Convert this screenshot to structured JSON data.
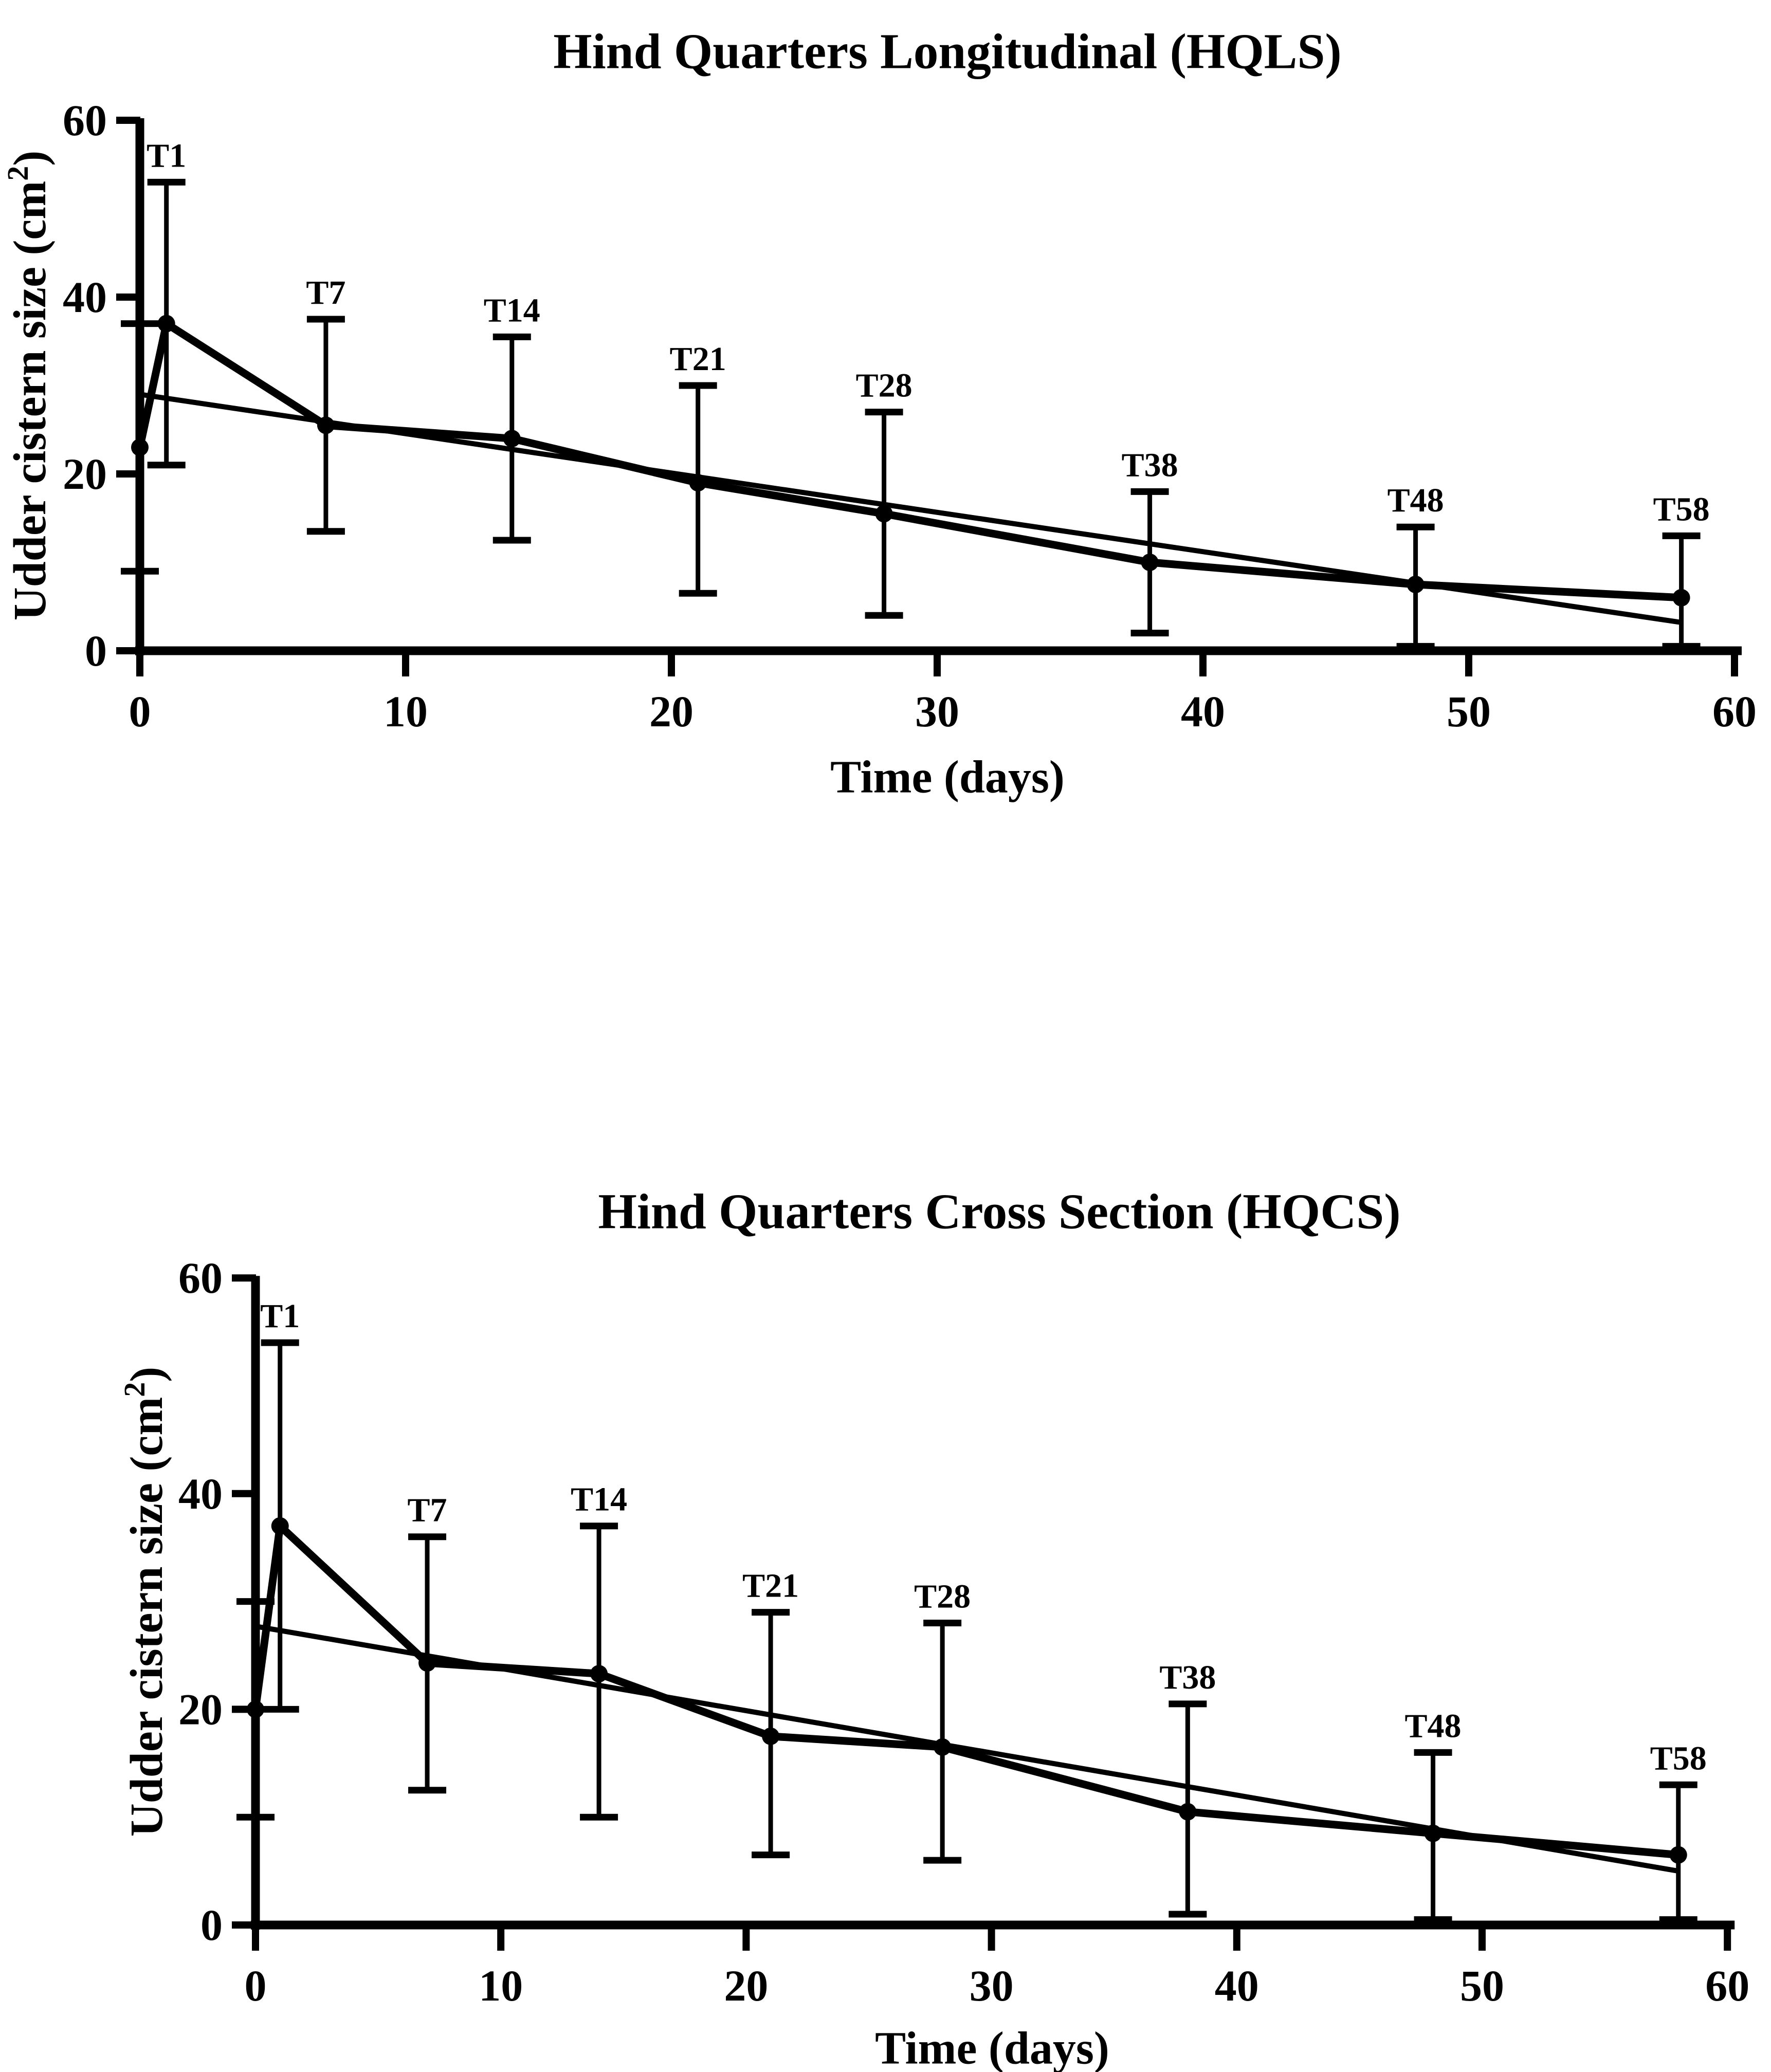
{
  "page": {
    "background": "#ffffff",
    "ink": "#000000"
  },
  "chart_data": [
    {
      "type": "line",
      "title": "Hind Quarters Longitudinal (HQLS)",
      "xlabel": "Time (days)",
      "ylabel_base": "Udder cistern size (cm",
      "ylabel_sup": "2",
      "ylabel_end": ")",
      "xlim": [
        0,
        60
      ],
      "ylim": [
        0,
        60
      ],
      "xticks": [
        0,
        10,
        20,
        30,
        40,
        50,
        60
      ],
      "yticks": [
        0,
        20,
        40,
        60
      ],
      "grid": false,
      "legend": null,
      "series": [
        {
          "name": "mean udder cistern size with SD error bars",
          "style": "markers+line",
          "points": [
            {
              "label": "",
              "x": 0,
              "y": 23,
              "err_lo": 9,
              "err_hi": 37
            },
            {
              "label": "T1",
              "x": 1,
              "y": 37,
              "err_lo": 21,
              "err_hi": 53
            },
            {
              "label": "T7",
              "x": 7,
              "y": 25.5,
              "err_lo": 13.5,
              "err_hi": 37.5
            },
            {
              "label": "T14",
              "x": 14,
              "y": 24,
              "err_lo": 12.5,
              "err_hi": 35.5
            },
            {
              "label": "T21",
              "x": 21,
              "y": 19,
              "err_lo": 6.5,
              "err_hi": 30
            },
            {
              "label": "T28",
              "x": 28,
              "y": 15.5,
              "err_lo": 4,
              "err_hi": 27
            },
            {
              "label": "T38",
              "x": 38,
              "y": 10,
              "err_lo": 2,
              "err_hi": 18
            },
            {
              "label": "T48",
              "x": 48,
              "y": 7.5,
              "err_lo": 0.5,
              "err_hi": 14
            },
            {
              "label": "T58",
              "x": 58,
              "y": 6,
              "err_lo": 0.5,
              "err_hi": 13
            }
          ]
        },
        {
          "name": "linear trend line",
          "style": "line",
          "points": [
            {
              "x": 0,
              "y": 29
            },
            {
              "x": 58,
              "y": 3.2
            }
          ]
        }
      ]
    },
    {
      "type": "line",
      "title": "Hind Quarters Cross Section (HQCS)",
      "xlabel": "Time (days)",
      "ylabel_base": "Udder cistern size (cm",
      "ylabel_sup": "2",
      "ylabel_end": ")",
      "xlim": [
        0,
        60
      ],
      "ylim": [
        0,
        60
      ],
      "xticks": [
        0,
        10,
        20,
        30,
        40,
        50,
        60
      ],
      "yticks": [
        0,
        20,
        40,
        60
      ],
      "grid": false,
      "legend": null,
      "series": [
        {
          "name": "mean udder cistern size with SD error bars",
          "style": "markers+line",
          "points": [
            {
              "label": "",
              "x": 0,
              "y": 20,
              "err_lo": 10,
              "err_hi": 30
            },
            {
              "label": "T1",
              "x": 1,
              "y": 37,
              "err_lo": 20,
              "err_hi": 54
            },
            {
              "label": "T7",
              "x": 7,
              "y": 24.3,
              "err_lo": 12.5,
              "err_hi": 36
            },
            {
              "label": "T14",
              "x": 14,
              "y": 23.3,
              "err_lo": 10,
              "err_hi": 37
            },
            {
              "label": "T21",
              "x": 21,
              "y": 17.5,
              "err_lo": 6.5,
              "err_hi": 29
            },
            {
              "label": "T28",
              "x": 28,
              "y": 16.5,
              "err_lo": 6,
              "err_hi": 28
            },
            {
              "label": "T38",
              "x": 38,
              "y": 10.5,
              "err_lo": 1,
              "err_hi": 20.5
            },
            {
              "label": "T48",
              "x": 48,
              "y": 8.5,
              "err_lo": 0.5,
              "err_hi": 16
            },
            {
              "label": "T58",
              "x": 58,
              "y": 6.5,
              "err_lo": 0.5,
              "err_hi": 13
            }
          ]
        },
        {
          "name": "linear trend line",
          "style": "line",
          "points": [
            {
              "x": 0,
              "y": 27.7
            },
            {
              "x": 58,
              "y": 5
            }
          ]
        }
      ]
    }
  ]
}
